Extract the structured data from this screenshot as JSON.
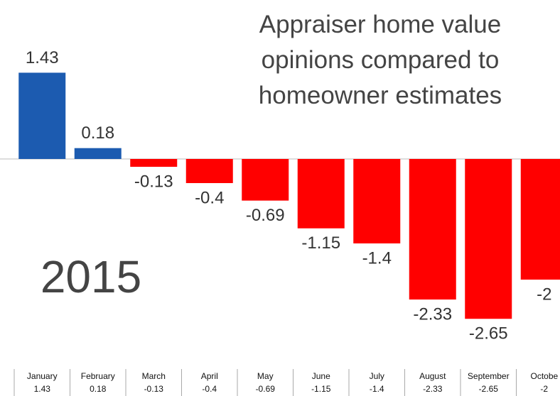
{
  "chart_data": {
    "type": "bar",
    "title": "Appraiser home value opinions compared to homeowner estimates",
    "annotation": "2015",
    "categories": [
      "January",
      "February",
      "March",
      "April",
      "May",
      "June",
      "July",
      "August",
      "September",
      "Octobe"
    ],
    "values": [
      1.43,
      0.18,
      -0.13,
      -0.4,
      -0.69,
      -1.15,
      -1.4,
      -2.33,
      -2.65,
      -2
    ],
    "positive_color": "#1c5bb0",
    "negative_color": "#ff0000",
    "ylim": [
      -3,
      1.5
    ]
  }
}
